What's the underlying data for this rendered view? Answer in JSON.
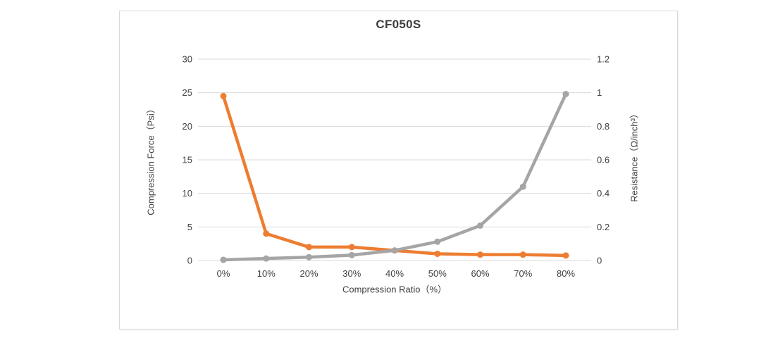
{
  "chart_data": {
    "type": "line",
    "title": "CF050S",
    "categories": [
      "0%",
      "10%",
      "20%",
      "30%",
      "40%",
      "50%",
      "60%",
      "70%",
      "80%"
    ],
    "series": [
      {
        "name": "Resistance",
        "axis": "right",
        "color": "#ED7D31",
        "values": [
          0.98,
          0.16,
          0.08,
          0.08,
          0.06,
          0.04,
          0.035,
          0.035,
          0.03
        ]
      },
      {
        "name": "Compression Force",
        "axis": "left",
        "color": "#A5A5A5",
        "values": [
          0.1,
          0.3,
          0.5,
          0.8,
          1.5,
          2.8,
          5.2,
          11,
          24.8
        ]
      }
    ],
    "axes": {
      "left": {
        "label": "Compression Force（Psi）",
        "min": 0,
        "max": 30,
        "tick_labels": [
          "0",
          "5",
          "10",
          "15",
          "20",
          "25",
          "30"
        ]
      },
      "right": {
        "label": "Resistance（Ω/inch³）",
        "min": 0,
        "max": 1.2,
        "tick_labels": [
          "0",
          "0.2",
          "0.4",
          "0.6",
          "0.8",
          "1",
          "1.2"
        ]
      },
      "x": {
        "label": "Compression Ratio（%）"
      }
    },
    "grid": true,
    "gridline_color": "#D9D9D9",
    "legend": "none"
  }
}
